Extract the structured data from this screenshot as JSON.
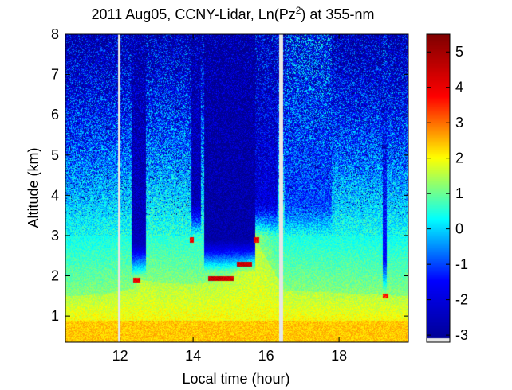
{
  "chart_data": {
    "type": "heatmap",
    "title_main": "2011 Aug05, CCNY-Lidar, Ln(Pz",
    "title_sup": "2",
    "title_end": ") at 355-nm",
    "xlabel": "Local time (hour)",
    "ylabel": "Altitude (km)",
    "xlim": [
      10.5,
      19.9
    ],
    "ylim": [
      0.35,
      8.0
    ],
    "xticks": [
      12,
      14,
      16,
      18
    ],
    "yticks": [
      1,
      2,
      3,
      4,
      5,
      6,
      7,
      8
    ],
    "colorbar": {
      "range": [
        -3.2,
        5.5
      ],
      "ticks": [
        -3,
        -2,
        -1,
        0,
        1,
        2,
        3,
        4,
        5
      ],
      "colormap": "jet",
      "stops": [
        "#00008f",
        "#0000ff",
        "#00ffff",
        "#ffff00",
        "#ff0000",
        "#800000"
      ]
    },
    "data_gaps_hours": [
      [
        11.93,
        12.0
      ],
      [
        16.35,
        16.45
      ]
    ],
    "boundary_layer_top_km": [
      {
        "x": 10.5,
        "y": 1.5
      },
      {
        "x": 11.5,
        "y": 1.55
      },
      {
        "x": 12.4,
        "y": 1.7
      },
      {
        "x": 12.5,
        "y": 1.9
      },
      {
        "x": 13.8,
        "y": 1.8
      },
      {
        "x": 14.5,
        "y": 1.85
      },
      {
        "x": 15.0,
        "y": 2.0
      },
      {
        "x": 15.5,
        "y": 2.4
      },
      {
        "x": 15.7,
        "y": 2.9
      },
      {
        "x": 16.5,
        "y": 1.65
      },
      {
        "x": 19.9,
        "y": 1.5
      }
    ],
    "cloud_layers": [
      {
        "x": [
          12.35,
          12.55
        ],
        "y": 1.9,
        "value": 4
      },
      {
        "x": [
          13.9,
          14.0
        ],
        "y": 2.9,
        "value": 4
      },
      {
        "x": [
          14.4,
          15.1
        ],
        "y": 1.95,
        "value": 4.5
      },
      {
        "x": [
          15.2,
          15.6
        ],
        "y": 2.3,
        "value": 4.5
      },
      {
        "x": [
          15.65,
          15.8
        ],
        "y": 2.9,
        "value": 4
      },
      {
        "x": [
          19.2,
          19.35
        ],
        "y": 1.5,
        "value": 3.5
      }
    ],
    "clear_columns": [
      {
        "x": [
          12.3,
          12.7
        ],
        "bottom": 2.0,
        "value": -2.5
      },
      {
        "x": [
          13.95,
          14.2
        ],
        "bottom": 3.0,
        "value": -2.5
      },
      {
        "x": [
          14.3,
          15.7
        ],
        "bottom": 2.1,
        "value": -2.8
      },
      {
        "x": [
          15.7,
          16.3
        ],
        "bottom": 3.0,
        "value": -2.0
      },
      {
        "x": [
          16.5,
          17.8
        ],
        "bottom": 3.0,
        "value": -1.0
      },
      {
        "x": [
          19.2,
          19.3
        ],
        "bottom": 1.6,
        "value": -1.5
      }
    ]
  }
}
